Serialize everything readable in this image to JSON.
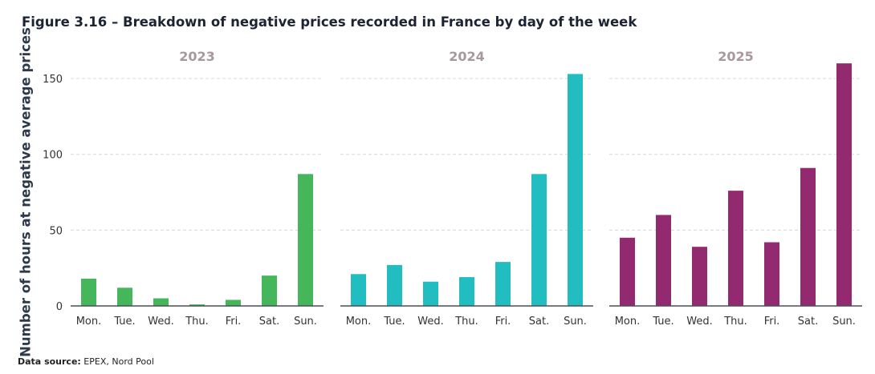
{
  "chart_data": {
    "type": "bar",
    "title": "Figure 3.16 – Breakdown of negative prices recorded in France by day of the week",
    "ylabel": "Number of hours at negative average prices",
    "xlabel": "",
    "ylim": [
      0,
      165
    ],
    "yticks": [
      0,
      50,
      100,
      150
    ],
    "grid": true,
    "categories": [
      "Mon.",
      "Tue.",
      "Wed.",
      "Thu.",
      "Fri.",
      "Sat.",
      "Sun."
    ],
    "panels": [
      {
        "name": "2023",
        "color": "#45b65a",
        "values": [
          18,
          12,
          5,
          1,
          4,
          20,
          87
        ]
      },
      {
        "name": "2024",
        "color": "#22bdc1",
        "values": [
          21,
          27,
          16,
          19,
          29,
          87,
          153
        ]
      },
      {
        "name": "2025",
        "color": "#93296e",
        "values": [
          45,
          60,
          39,
          76,
          42,
          91,
          160
        ]
      }
    ]
  },
  "source": {
    "label": "Data source:",
    "text": " EPEX, Nord Pool"
  }
}
